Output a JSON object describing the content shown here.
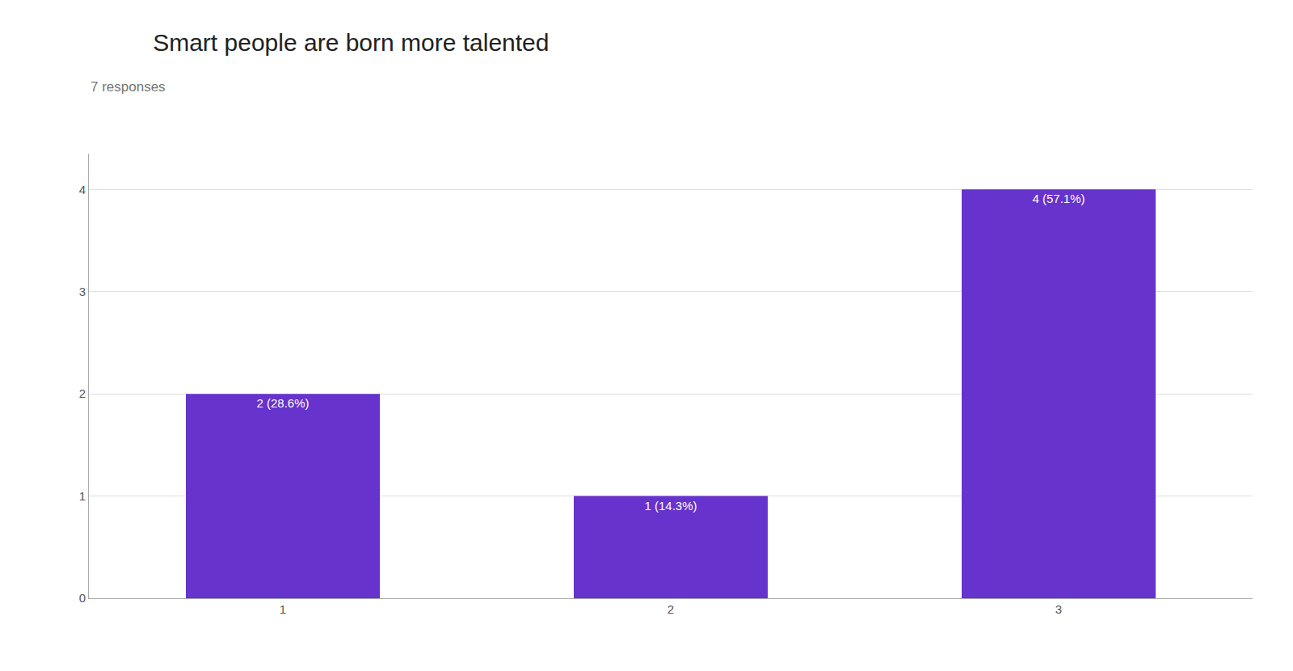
{
  "chart_data": {
    "type": "bar",
    "title": "Smart people are born more talented",
    "subtitle": "7 responses",
    "categories": [
      1,
      2,
      3
    ],
    "values": [
      2,
      1,
      4
    ],
    "value_labels": [
      "2 (28.6%)",
      "1 (14.3%)",
      "4 (57.1%)"
    ],
    "color": "#6633cc",
    "ylim": [
      0,
      4.35
    ],
    "yticks": [
      0,
      1,
      2,
      3,
      4
    ],
    "grid": true,
    "data_labels": true
  }
}
